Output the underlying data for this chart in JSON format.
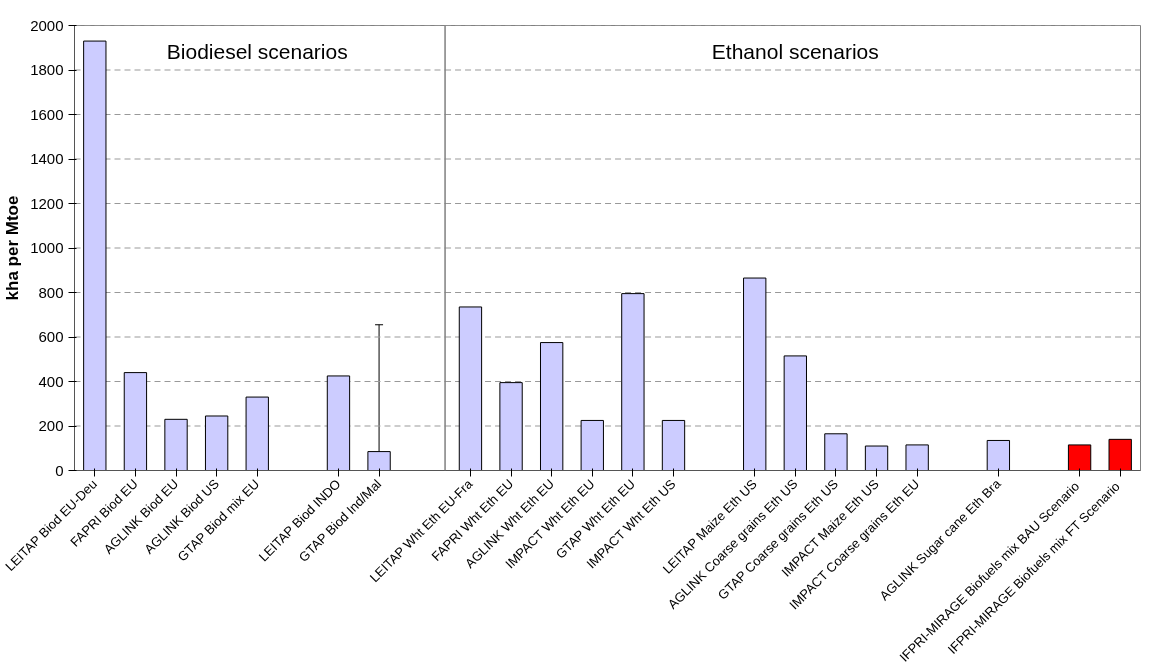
{
  "chart_data": [
    {
      "type": "bar",
      "annotations": [
        "Biodiesel scenarios"
      ],
      "ylabel": "kha per Mtoe",
      "categories": [
        "LEITAP Biod EU-Deu",
        "FAPRI Biod EU",
        "AGLINK Biod EU",
        "AGLINK Biod US",
        "GTAP Biod mix EU",
        null,
        "LEITAP Biod INDO",
        "GTAP Biod Ind/Mal",
        null
      ],
      "values": [
        1930,
        440,
        230,
        245,
        330,
        null,
        425,
        85,
        null
      ],
      "errors": [
        null,
        null,
        null,
        null,
        null,
        null,
        null,
        [
          85,
          655
        ],
        null
      ],
      "colors": [
        "#ccccff",
        "#ccccff",
        "#ccccff",
        "#ccccff",
        "#ccccff",
        null,
        "#ccccff",
        "#ccccff",
        null
      ],
      "ylim": [
        0,
        2000
      ],
      "yticks": [
        0,
        200,
        400,
        600,
        800,
        1000,
        1200,
        1400,
        1600,
        1800,
        2000
      ],
      "grid": "y"
    },
    {
      "type": "bar",
      "annotations": [
        "Ethanol scenarios"
      ],
      "categories": [
        "LEITAP Wht Eth EU-Fra",
        "FAPRI Wht Eth EU",
        "AGLINK Wht Eth EU",
        "IMPACT Wht Eth EU",
        "GTAP Wht Eth EU",
        "IMPACT Wht Eth US",
        null,
        "LEITAP Maize Eth US",
        "AGLINK Coarse grains Eth US",
        "GTAP Coarse grains Eth US",
        "IMPACT Maize Eth US",
        "IMPACT Coarse grains Eth EU",
        null,
        "AGLINK Sugar cane Eth Bra",
        null,
        "IFPRI-MIRAGE Biofuels mix  BAU Scenario",
        "IFPRI-MIRAGE Biofuels mix  FT Scenario"
      ],
      "values": [
        735,
        395,
        575,
        225,
        795,
        225,
        null,
        865,
        515,
        165,
        110,
        115,
        null,
        135,
        null,
        115,
        140
      ],
      "colors": [
        "#ccccff",
        "#ccccff",
        "#ccccff",
        "#ccccff",
        "#ccccff",
        "#ccccff",
        null,
        "#ccccff",
        "#ccccff",
        "#ccccff",
        "#ccccff",
        "#ccccff",
        null,
        "#ccccff",
        null,
        "#ff0000",
        "#ff0000"
      ],
      "ylim": [
        0,
        2000
      ],
      "yticks": [
        0,
        200,
        400,
        600,
        800,
        1000,
        1200,
        1400,
        1600,
        1800,
        2000
      ],
      "grid": "y",
      "tick_labels": "x"
    }
  ]
}
